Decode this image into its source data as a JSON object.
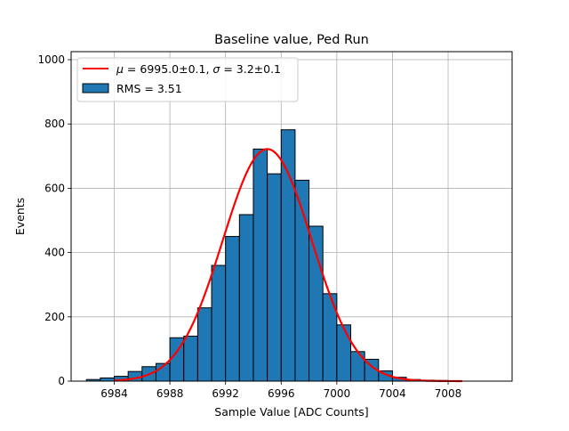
{
  "chart_data": {
    "type": "bar",
    "title": "Baseline value, Ped Run",
    "xlabel": "Sample Value [ADC Counts]",
    "ylabel": "Events",
    "xlim": [
      6980.9,
      7012.6
    ],
    "ylim": [
      0,
      1025
    ],
    "xticks": [
      6984,
      6988,
      6992,
      6996,
      7000,
      7004,
      7008
    ],
    "yticks": [
      0,
      200,
      400,
      600,
      800,
      1000
    ],
    "grid": true,
    "legend_position": "top-left",
    "histogram": {
      "name": "RMS = 3.51",
      "bin_width": 1,
      "bin_starts": [
        6982,
        6983,
        6984,
        6985,
        6986,
        6987,
        6988,
        6989,
        6990,
        6991,
        6992,
        6993,
        6994,
        6995,
        6996,
        6997,
        6998,
        6999,
        7000,
        7001,
        7002,
        7003,
        7004,
        7005,
        7006,
        7007,
        7008
      ],
      "counts": [
        5,
        10,
        15,
        30,
        45,
        55,
        135,
        140,
        228,
        360,
        450,
        518,
        722,
        645,
        782,
        625,
        482,
        272,
        175,
        92,
        68,
        32,
        12,
        5,
        3,
        2,
        1
      ],
      "color": "#1f77b4",
      "edge_color": "#000000"
    },
    "fit": {
      "name": "$\\mu = 6995.0\\pm0.1$, $\\sigma = 3.2\\pm0.1$",
      "type": "gaussian",
      "mu": 6995.0,
      "sigma": 3.2,
      "amplitude": 722,
      "x_range": [
        6984,
        7009
      ],
      "color": "#ff0000"
    }
  },
  "legend": {
    "fit_mu_symbol": "μ",
    "fit_mu_text": " = 6995.0±0.1, ",
    "fit_sigma_symbol": "σ",
    "fit_sigma_text": " = 3.2±0.1",
    "hist_label": "RMS = 3.51"
  }
}
